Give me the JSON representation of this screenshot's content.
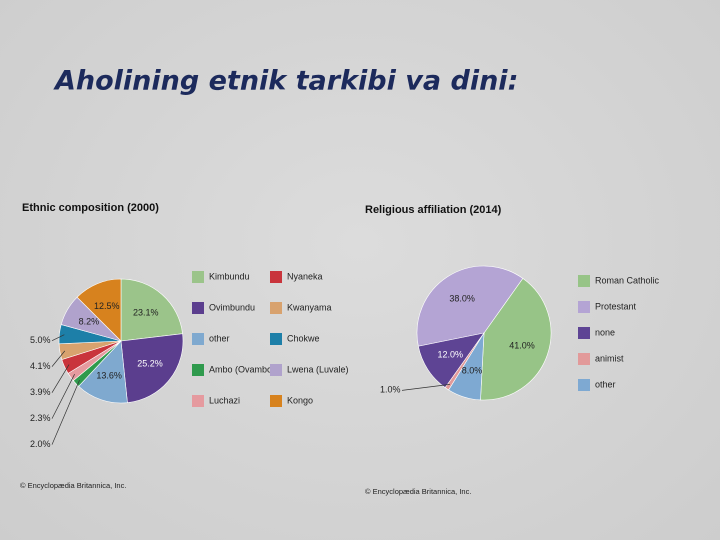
{
  "title": "Aholining etnik tarkibi va dini:",
  "chart_data": [
    {
      "type": "pie",
      "title": "Ethnic composition (2000)",
      "categories": [
        "Kimbundu",
        "Ovimbundu",
        "other",
        "Ambo (Ovambo)",
        "Luchazi",
        "Nyaneka",
        "Kwanyama",
        "Chokwe",
        "Lwena (Luvale)",
        "Kongo"
      ],
      "values": [
        23.1,
        25.2,
        13.6,
        2.0,
        2.3,
        3.9,
        4.1,
        5.0,
        8.2,
        12.5
      ],
      "value_labels": [
        "23.1%",
        "25.2%",
        "13.6%",
        "2.0%",
        "2.3%",
        "3.9%",
        "4.1%",
        "5.0%",
        "8.2%",
        "12.5%"
      ],
      "colors": [
        "#9bc48a",
        "#5b3e8e",
        "#7fa9cf",
        "#2f9a4d",
        "#e59a9f",
        "#c9343c",
        "#d8a26e",
        "#1d7fa8",
        "#b0a2cc",
        "#d7821e"
      ],
      "source": "© Encyclopædia Britannica, Inc."
    },
    {
      "type": "pie",
      "title": "Religious affiliation (2014)",
      "categories": [
        "Roman Catholic",
        "Protestant",
        "none",
        "animist",
        "other"
      ],
      "values": [
        41.0,
        38.0,
        12.0,
        1.0,
        8.0
      ],
      "value_labels": [
        "41.0%",
        "38.0%",
        "12.0%",
        "1.0%",
        "8.0%"
      ],
      "colors": [
        "#97c487",
        "#b4a4d4",
        "#5e4494",
        "#e29a9a",
        "#7ea9d2"
      ],
      "source": "© Encyclopædia Britannica, Inc."
    }
  ]
}
